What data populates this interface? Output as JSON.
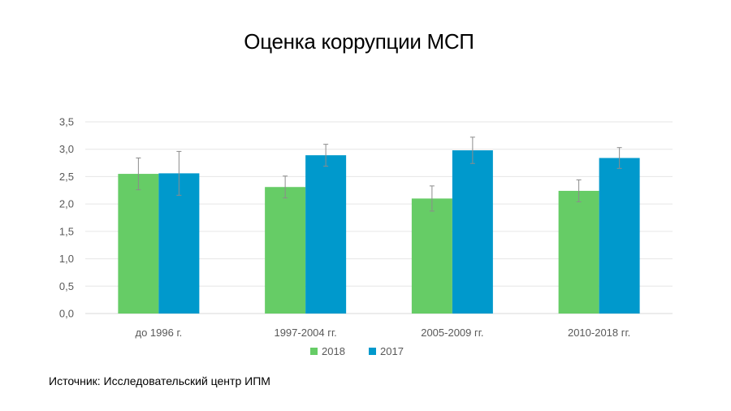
{
  "slide": {
    "title": "Оценка коррупции МСП",
    "source": "Источник: Исследовательский центр ИПМ"
  },
  "chart_data": {
    "type": "bar",
    "categories": [
      "до 1996 г.",
      "1997-2004 гг.",
      "2005-2009 гг.",
      "2010-2018 гг."
    ],
    "series": [
      {
        "name": "2018",
        "color": "#66CC66",
        "values": [
          2.55,
          2.31,
          2.1,
          2.24
        ],
        "error": [
          0.29,
          0.2,
          0.23,
          0.2
        ]
      },
      {
        "name": "2017",
        "color": "#0099CC",
        "values": [
          2.56,
          2.89,
          2.98,
          2.84
        ],
        "error": [
          0.4,
          0.2,
          0.24,
          0.19
        ]
      }
    ],
    "yticks": [
      "0,0",
      "0,5",
      "1,0",
      "1,5",
      "2,0",
      "2,5",
      "3,0",
      "3,5"
    ],
    "ylim": [
      0,
      3.5
    ],
    "grid": true,
    "legend": "bottom",
    "error_bars": true
  }
}
